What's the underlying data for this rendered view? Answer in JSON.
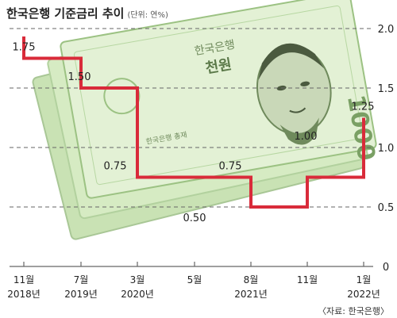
{
  "chart_data": {
    "type": "line",
    "step": true,
    "title": "한국은행 기준금리 추이",
    "unit": "(단위: 연%)",
    "source": "〈자료: 한국은행〉",
    "ylim": [
      0,
      2.0
    ],
    "yticks": [
      "0",
      "0.5",
      "1.0",
      "1.5",
      "2.0"
    ],
    "xticks": [
      {
        "month": "11월",
        "year": "2018년"
      },
      {
        "month": "7월",
        "year": "2019년"
      },
      {
        "month": "3월",
        "year": "2020년"
      },
      {
        "month": "5월",
        "year": ""
      },
      {
        "month": "8월",
        "year": "2021년"
      },
      {
        "month": "11월",
        "year": ""
      },
      {
        "month": "1월",
        "year": "2022년"
      }
    ],
    "values": [
      1.75,
      1.5,
      0.75,
      0.5,
      0.75,
      1.0,
      1.25
    ],
    "labels": [
      "1.75",
      "1.50",
      "0.75",
      "0.50",
      "0.75",
      "1.00",
      "1.25"
    ],
    "grid": true,
    "colors": {
      "line": "#d92b3a",
      "grid": "#666666",
      "text": "#222222"
    }
  },
  "background_image": {
    "icon": "1000-won-banknote-illustration",
    "note_texts": [
      "한국은행",
      "천원",
      "1000",
      "한국은행 총재"
    ]
  }
}
